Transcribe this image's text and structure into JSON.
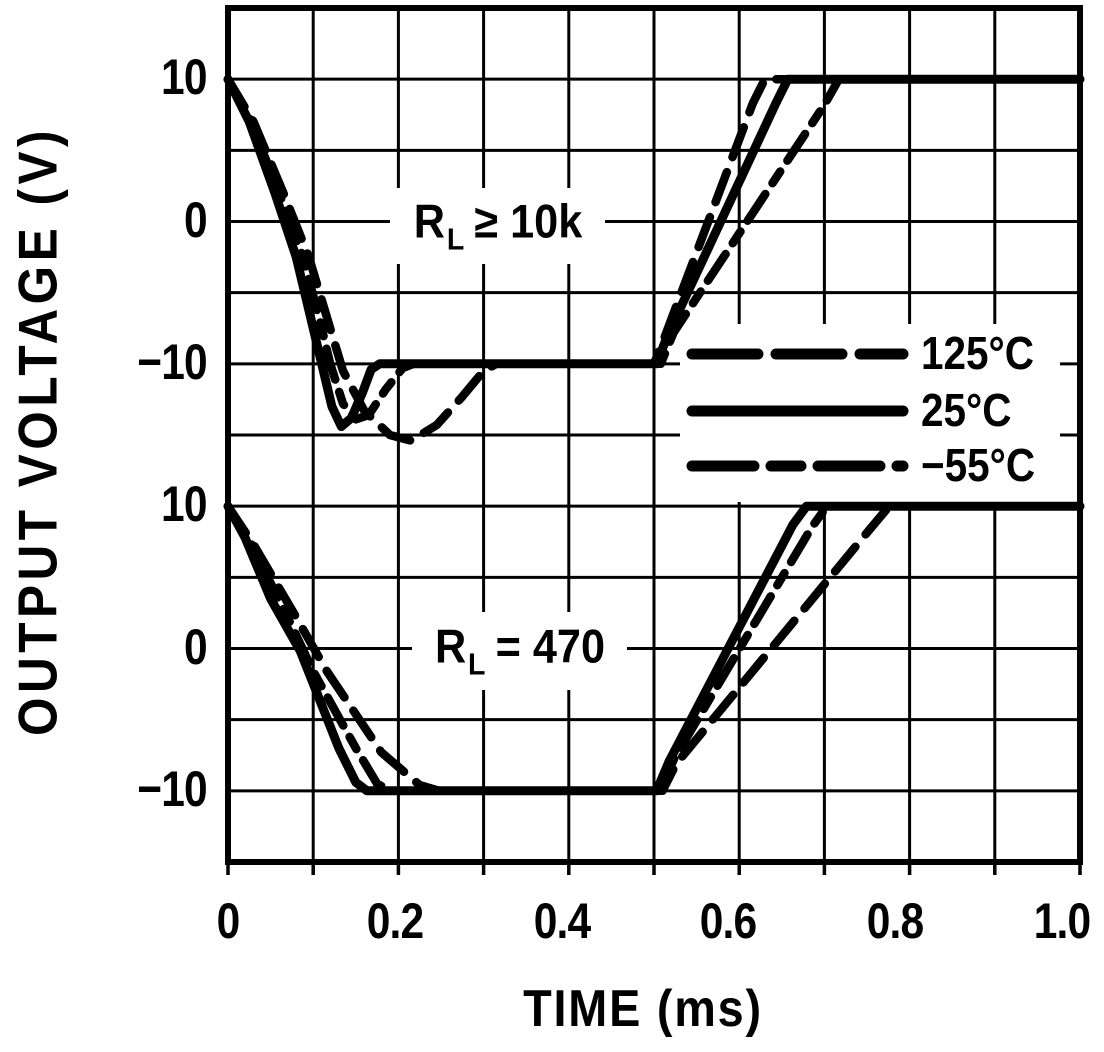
{
  "chart_data": {
    "type": "line",
    "title": "",
    "xlabel": "TIME (ms)",
    "ylabel": "OUTPUT VOLTAGE (V)",
    "xlim": [
      0,
      1.0
    ],
    "grid": true,
    "background_color": "#ffffff",
    "line_color": "#000000",
    "x_ticks": [
      {
        "value": 0,
        "label": "0"
      },
      {
        "value": 0.2,
        "label": "0.2"
      },
      {
        "value": 0.4,
        "label": "0.4"
      },
      {
        "value": 0.6,
        "label": "0.6"
      },
      {
        "value": 0.8,
        "label": "0.8"
      },
      {
        "value": 1.0,
        "label": "1.0"
      }
    ],
    "legend": {
      "position": "middle-right",
      "entries": [
        {
          "label": "125°C",
          "style": "dashed"
        },
        {
          "label": "25°C",
          "style": "solid"
        },
        {
          "label": "−55°C",
          "style": "dash-dot"
        }
      ]
    },
    "panels": [
      {
        "id": "rl-10k",
        "annotation": {
          "symbol": "R",
          "subscript": "L",
          "rest": "≥ 10k",
          "text": "RL ≥ 10k"
        },
        "y_ticks": [
          {
            "value": 10,
            "label": "10"
          },
          {
            "value": 0,
            "label": "0"
          },
          {
            "value": -10,
            "label": "−10"
          }
        ],
        "series": [
          {
            "key": "125c",
            "name": "125°C",
            "style": "dashed",
            "points": [
              [
                0,
                10
              ],
              [
                0.03,
                7
              ],
              [
                0.065,
                2
              ],
              [
                0.095,
                -2.5
              ],
              [
                0.12,
                -7.5
              ],
              [
                0.135,
                -10.5
              ],
              [
                0.16,
                -13.3
              ],
              [
                0.19,
                -15
              ],
              [
                0.215,
                -15.4
              ],
              [
                0.245,
                -14.3
              ],
              [
                0.275,
                -12.3
              ],
              [
                0.3,
                -10.5
              ],
              [
                0.315,
                -10
              ],
              [
                0.5,
                -10
              ],
              [
                0.512,
                -8.2
              ],
              [
                0.616,
                8.3
              ],
              [
                0.63,
                10
              ],
              [
                1.0,
                10
              ]
            ]
          },
          {
            "key": "25c",
            "name": "25°C",
            "style": "solid",
            "points": [
              [
                0,
                10
              ],
              [
                0.025,
                7
              ],
              [
                0.055,
                2
              ],
              [
                0.08,
                -2.5
              ],
              [
                0.1,
                -7.5
              ],
              [
                0.11,
                -10
              ],
              [
                0.122,
                -13
              ],
              [
                0.133,
                -14.4
              ],
              [
                0.145,
                -13.8
              ],
              [
                0.158,
                -12
              ],
              [
                0.168,
                -10.4
              ],
              [
                0.178,
                -10
              ],
              [
                0.503,
                -10
              ],
              [
                0.516,
                -8
              ],
              [
                0.643,
                8.3
              ],
              [
                0.657,
                10
              ],
              [
                1.0,
                10
              ]
            ]
          },
          {
            "key": "m55c",
            "name": "−55°C",
            "style": "dash-dot",
            "points": [
              [
                0,
                10
              ],
              [
                0.027,
                7
              ],
              [
                0.06,
                2
              ],
              [
                0.088,
                -2.5
              ],
              [
                0.108,
                -7
              ],
              [
                0.12,
                -10
              ],
              [
                0.135,
                -12.8
              ],
              [
                0.15,
                -13.9
              ],
              [
                0.165,
                -13.6
              ],
              [
                0.185,
                -11.8
              ],
              [
                0.205,
                -10.3
              ],
              [
                0.218,
                -10
              ],
              [
                0.508,
                -10
              ],
              [
                0.523,
                -7.8
              ],
              [
                0.7,
                8.2
              ],
              [
                0.717,
                10
              ],
              [
                1.0,
                10
              ]
            ]
          }
        ]
      },
      {
        "id": "rl-470",
        "annotation": {
          "symbol": "R",
          "subscript": "L",
          "rest": "= 470",
          "text": "RL = 470"
        },
        "y_ticks": [
          {
            "value": 10,
            "label": "10"
          },
          {
            "value": 0,
            "label": "0"
          },
          {
            "value": -10,
            "label": "−10"
          }
        ],
        "series": [
          {
            "key": "125c",
            "name": "125°C",
            "style": "dashed",
            "points": [
              [
                0,
                10
              ],
              [
                0.03,
                7.3
              ],
              [
                0.08,
                2.2
              ],
              [
                0.115,
                -1.5
              ],
              [
                0.18,
                -7.3
              ],
              [
                0.225,
                -9.6
              ],
              [
                0.248,
                -10
              ],
              [
                0.51,
                -10
              ],
              [
                0.526,
                -8.1
              ],
              [
                0.755,
                8.5
              ],
              [
                0.776,
                10
              ],
              [
                1.0,
                10
              ]
            ]
          },
          {
            "key": "25c",
            "name": "25°C",
            "style": "solid",
            "points": [
              [
                0,
                10
              ],
              [
                0.02,
                7.8
              ],
              [
                0.05,
                3.5
              ],
              [
                0.085,
                -0.2
              ],
              [
                0.13,
                -7
              ],
              [
                0.15,
                -9.4
              ],
              [
                0.163,
                -10
              ],
              [
                0.503,
                -10
              ],
              [
                0.518,
                -7.9
              ],
              [
                0.663,
                8.7
              ],
              [
                0.679,
                10
              ],
              [
                1.0,
                10
              ]
            ]
          },
          {
            "key": "m55c",
            "name": "−55°C",
            "style": "dash-dot",
            "points": [
              [
                0,
                10
              ],
              [
                0.025,
                7.6
              ],
              [
                0.07,
                2.2
              ],
              [
                0.1,
                -1.6
              ],
              [
                0.15,
                -7
              ],
              [
                0.175,
                -9.5
              ],
              [
                0.19,
                -10
              ],
              [
                0.507,
                -10
              ],
              [
                0.524,
                -7.7
              ],
              [
                0.686,
                8.6
              ],
              [
                0.703,
                10
              ],
              [
                1.0,
                10
              ]
            ]
          }
        ]
      }
    ]
  }
}
